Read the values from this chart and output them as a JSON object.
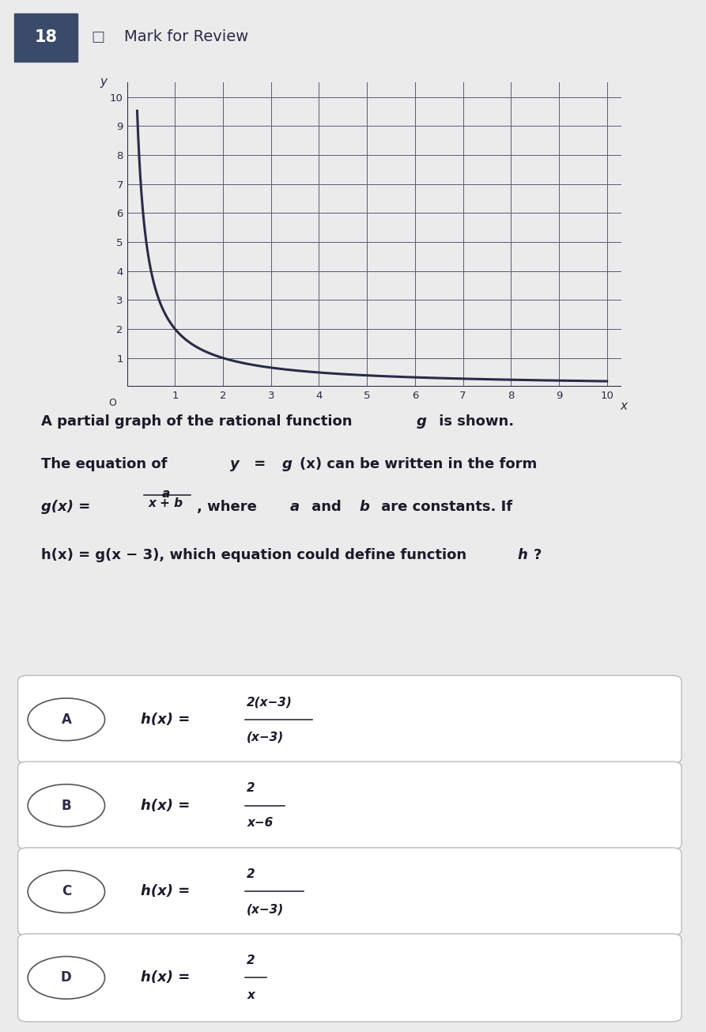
{
  "background_color": "#ebebeb",
  "question_number": "18",
  "mark_for_review": "Mark for Review",
  "graph": {
    "xlim": [
      0,
      10.3
    ],
    "ylim": [
      0,
      10.5
    ],
    "curve_color": "#2a2a4a",
    "grid_color": "#5a5a7a",
    "axis_color": "#2a2a4a",
    "curve_a": 2.0
  },
  "choice_data": [
    {
      "label": "A",
      "num": "2(x−3)",
      "den": "(x−3)"
    },
    {
      "label": "B",
      "num": "2",
      "den": "x−6"
    },
    {
      "label": "C",
      "num": "2",
      "den": "(x−3)"
    },
    {
      "label": "D",
      "num": "2",
      "den": "x"
    }
  ]
}
